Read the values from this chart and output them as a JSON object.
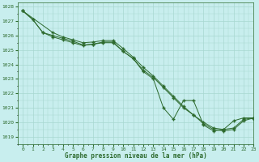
{
  "title": "Graphe pression niveau de la mer (hPa)",
  "background_color": "#c8eeee",
  "grid_color": "#a8d8d0",
  "line_color": "#2d6a2d",
  "xlim": [
    -0.5,
    23
  ],
  "ylim": [
    1018.5,
    1028.3
  ],
  "yticks": [
    1019,
    1020,
    1021,
    1022,
    1023,
    1024,
    1025,
    1026,
    1027,
    1028
  ],
  "xticks": [
    0,
    1,
    2,
    3,
    4,
    5,
    6,
    7,
    8,
    9,
    10,
    11,
    12,
    13,
    14,
    15,
    16,
    17,
    18,
    19,
    20,
    21,
    22,
    23
  ],
  "series1_x": [
    0,
    1,
    2,
    3,
    4,
    5,
    6,
    7,
    8,
    9,
    10,
    11,
    12,
    13,
    14,
    15,
    16,
    17,
    18,
    19,
    20,
    21,
    22,
    23
  ],
  "series1_y": [
    1027.7,
    1027.1,
    1026.2,
    1026.0,
    1025.8,
    1025.6,
    1025.35,
    1025.4,
    1025.55,
    1025.55,
    1024.9,
    1024.4,
    1023.6,
    1023.1,
    1022.4,
    1021.7,
    1021.0,
    1020.5,
    1020.0,
    1019.6,
    1019.5,
    1019.6,
    1020.2,
    1020.3
  ],
  "series2_x": [
    0,
    3,
    4,
    5,
    6,
    7,
    8,
    9,
    10,
    11,
    12,
    13,
    14,
    15,
    16,
    17,
    18,
    19,
    20,
    21,
    22,
    23
  ],
  "series2_y": [
    1027.7,
    1026.2,
    1025.9,
    1025.7,
    1025.5,
    1025.55,
    1025.65,
    1025.65,
    1025.1,
    1024.5,
    1023.8,
    1023.2,
    1022.5,
    1021.8,
    1021.1,
    1020.5,
    1019.9,
    1019.5,
    1019.4,
    1019.5,
    1020.1,
    1020.3
  ],
  "series3_x": [
    0,
    1,
    2,
    3,
    4,
    5,
    6,
    7,
    8,
    9,
    10,
    11,
    12,
    13,
    14,
    15,
    16,
    17,
    18,
    19,
    20,
    21,
    22,
    23
  ],
  "series3_y": [
    1027.7,
    1027.1,
    1026.2,
    1025.9,
    1025.7,
    1025.5,
    1025.3,
    1025.4,
    1025.5,
    1025.5,
    1024.9,
    1024.4,
    1023.5,
    1023.0,
    1021.0,
    1020.2,
    1021.5,
    1021.5,
    1019.8,
    1019.4,
    1019.5,
    1020.1,
    1020.3,
    1020.3
  ]
}
